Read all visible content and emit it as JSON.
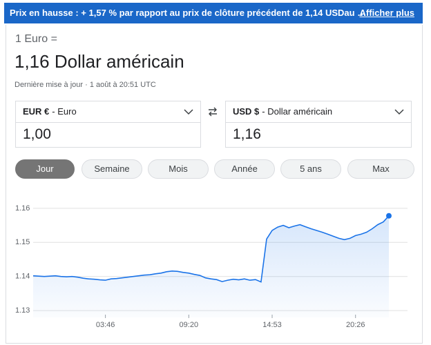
{
  "banner": {
    "text": "Prix en hausse : + 1,57 % par rapport au prix de clôture précédent de 1,14 USDau …",
    "link": "Afficher plus"
  },
  "header": {
    "base": "1 Euro =",
    "result": "1,16 Dollar américain",
    "updated": "Dernière mise à jour · 1 août à 20:51 UTC"
  },
  "converter": {
    "from": {
      "code": "EUR €",
      "name": "- Euro",
      "amount": "1,00"
    },
    "to": {
      "code": "USD $",
      "name": "- Dollar américain",
      "amount": "1,16"
    }
  },
  "tabs": [
    "Jour",
    "Semaine",
    "Mois",
    "Année",
    "5 ans",
    "Max"
  ],
  "active_tab": 0,
  "chart_data": {
    "type": "line",
    "color": "#1a73e8",
    "grid": true,
    "categories": [
      null,
      null,
      null,
      null,
      null,
      null,
      null,
      null,
      null,
      null,
      null,
      null,
      null,
      "03:46",
      null,
      null,
      null,
      null,
      null,
      null,
      null,
      null,
      null,
      null,
      null,
      null,
      null,
      null,
      "09:20",
      null,
      null,
      null,
      null,
      null,
      null,
      null,
      null,
      null,
      null,
      null,
      null,
      null,
      null,
      "14:53",
      null,
      null,
      null,
      null,
      null,
      null,
      null,
      null,
      null,
      null,
      null,
      null,
      null,
      null,
      "20:26",
      null,
      null,
      null,
      null,
      null,
      null
    ],
    "values": [
      1.1402,
      1.1401,
      1.14,
      1.1401,
      1.1402,
      1.14,
      1.1399,
      1.14,
      1.1398,
      1.1395,
      1.1393,
      1.1392,
      1.139,
      1.1389,
      1.1393,
      1.1394,
      1.1396,
      1.1398,
      1.14,
      1.1402,
      1.1404,
      1.1405,
      1.1408,
      1.141,
      1.1414,
      1.1416,
      1.1415,
      1.1412,
      1.141,
      1.1406,
      1.1403,
      1.1396,
      1.1393,
      1.1391,
      1.1385,
      1.1389,
      1.1392,
      1.139,
      1.1393,
      1.1389,
      1.1391,
      1.1384,
      1.151,
      1.1535,
      1.1545,
      1.155,
      1.1543,
      1.1548,
      1.1552,
      1.1546,
      1.154,
      1.1535,
      1.153,
      1.1524,
      1.1518,
      1.1512,
      1.1508,
      1.1512,
      1.152,
      1.1524,
      1.153,
      1.154,
      1.1552,
      1.156,
      1.1578
    ],
    "ylim": [
      1.128,
      1.162
    ],
    "yticks": [
      1.13,
      1.14,
      1.15,
      1.16
    ]
  }
}
